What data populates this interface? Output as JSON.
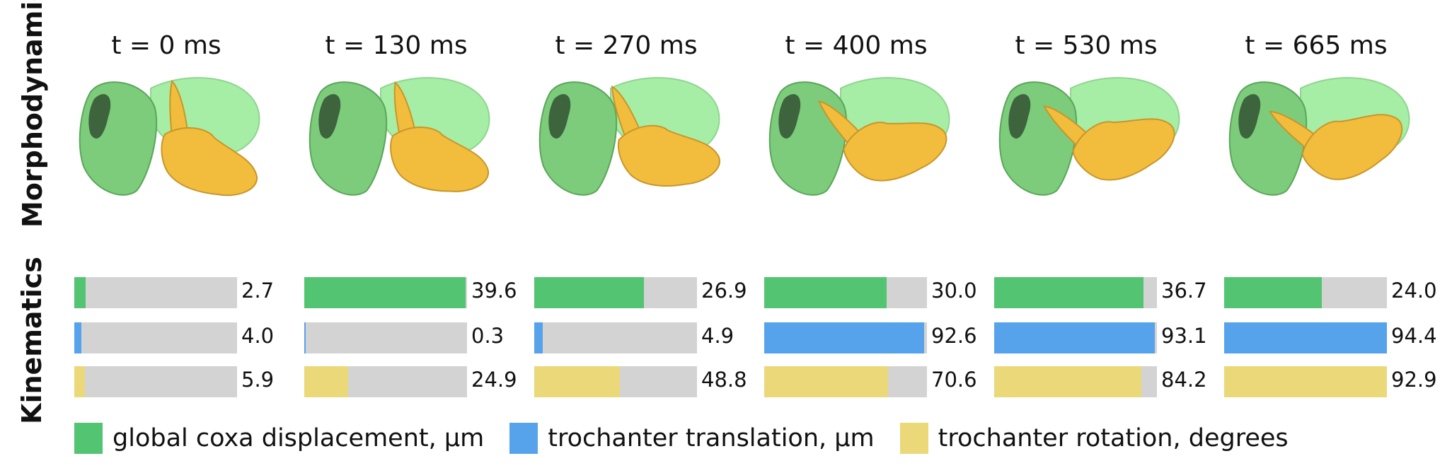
{
  "labels": {
    "morpho": "Morphodynamics",
    "kin": "Kinematics"
  },
  "colors": {
    "coxa_green": "#52c472",
    "trochanter_blue": "#56a2eb",
    "rotation_yellow": "#ebd879",
    "bar_background": "#d3d3d3",
    "shape_green": "#a6eda6",
    "shape_gold": "#f2bd3d"
  },
  "timepoints": [
    "t = 0 ms",
    "t = 130 ms",
    "t = 270 ms",
    "t = 400 ms",
    "t = 530 ms",
    "t = 665 ms"
  ],
  "chart_data": {
    "type": "bar",
    "orientation": "horizontal",
    "categories": [
      "t = 0 ms",
      "t = 130 ms",
      "t = 270 ms",
      "t = 400 ms",
      "t = 530 ms",
      "t = 665 ms"
    ],
    "series": [
      {
        "name": "global coxa displacement, μm",
        "color": "#52c472",
        "values": [
          2.7,
          39.6,
          26.9,
          30.0,
          36.7,
          24.0
        ],
        "labels": [
          "2.7",
          "39.6",
          "26.9",
          "30.0",
          "36.7",
          "24.0"
        ],
        "scale_max": 40.0
      },
      {
        "name": "trochanter translation, μm",
        "color": "#56a2eb",
        "values": [
          4.0,
          0.3,
          4.9,
          92.6,
          93.1,
          94.4
        ],
        "labels": [
          "4.0",
          "0.3",
          "4.9",
          "92.6",
          "93.1",
          "94.4"
        ],
        "scale_max": 94.4
      },
      {
        "name": "trochanter rotation, degrees",
        "color": "#ebd879",
        "values": [
          5.9,
          24.9,
          48.8,
          70.6,
          84.2,
          92.9
        ],
        "labels": [
          "5.9",
          "24.9",
          "48.8",
          "70.6",
          "84.2",
          "92.9"
        ],
        "scale_max": 92.9
      }
    ],
    "legend_position": "bottom",
    "grid": false
  }
}
